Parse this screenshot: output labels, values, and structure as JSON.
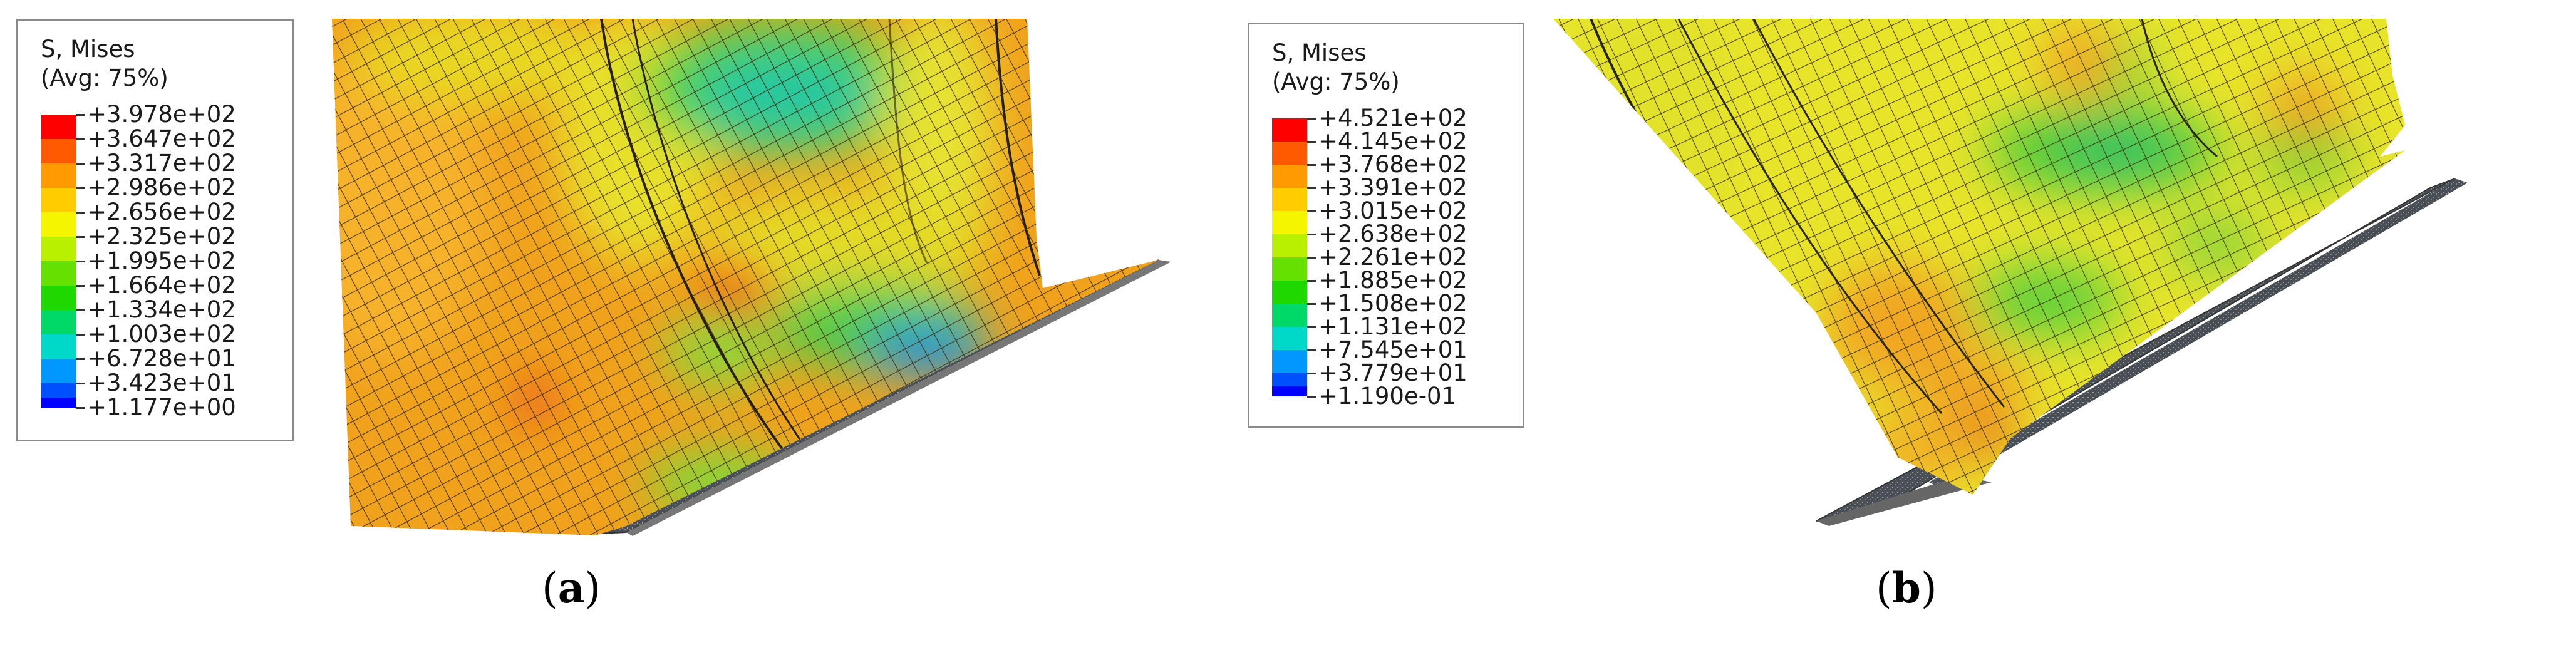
{
  "panels": [
    {
      "caption_open": "(",
      "caption_letter": "a",
      "caption_close": ")",
      "legend_title": "S, Mises",
      "legend_subtitle": "(Avg: 75%)",
      "legend_values": [
        "+3.978e+02",
        "+3.647e+02",
        "+3.317e+02",
        "+2.986e+02",
        "+2.656e+02",
        "+2.325e+02",
        "+1.995e+02",
        "+1.664e+02",
        "+1.334e+02",
        "+1.003e+02",
        "+6.728e+01",
        "+3.423e+01",
        "+1.177e+00"
      ]
    },
    {
      "caption_open": "(",
      "caption_letter": "b",
      "caption_close": ")",
      "legend_title": "S, Mises",
      "legend_subtitle": "(Avg: 75%)",
      "legend_values": [
        "+4.521e+02",
        "+4.145e+02",
        "+3.768e+02",
        "+3.391e+02",
        "+3.015e+02",
        "+2.638e+02",
        "+2.261e+02",
        "+1.885e+02",
        "+1.508e+02",
        "+1.131e+02",
        "+7.545e+01",
        "+3.779e+01",
        "+1.190e-01"
      ]
    }
  ],
  "colors": {
    "contour_scale": [
      "#ff0000",
      "#ff5a00",
      "#ff9a00",
      "#ffcc00",
      "#f5f500",
      "#b8f000",
      "#66e000",
      "#1ed800",
      "#00d868",
      "#00d8c8",
      "#0098ff",
      "#0050ff",
      "#0000ff"
    ],
    "mesh_line": "#3a2a10",
    "plate": "#5a5a5a"
  }
}
